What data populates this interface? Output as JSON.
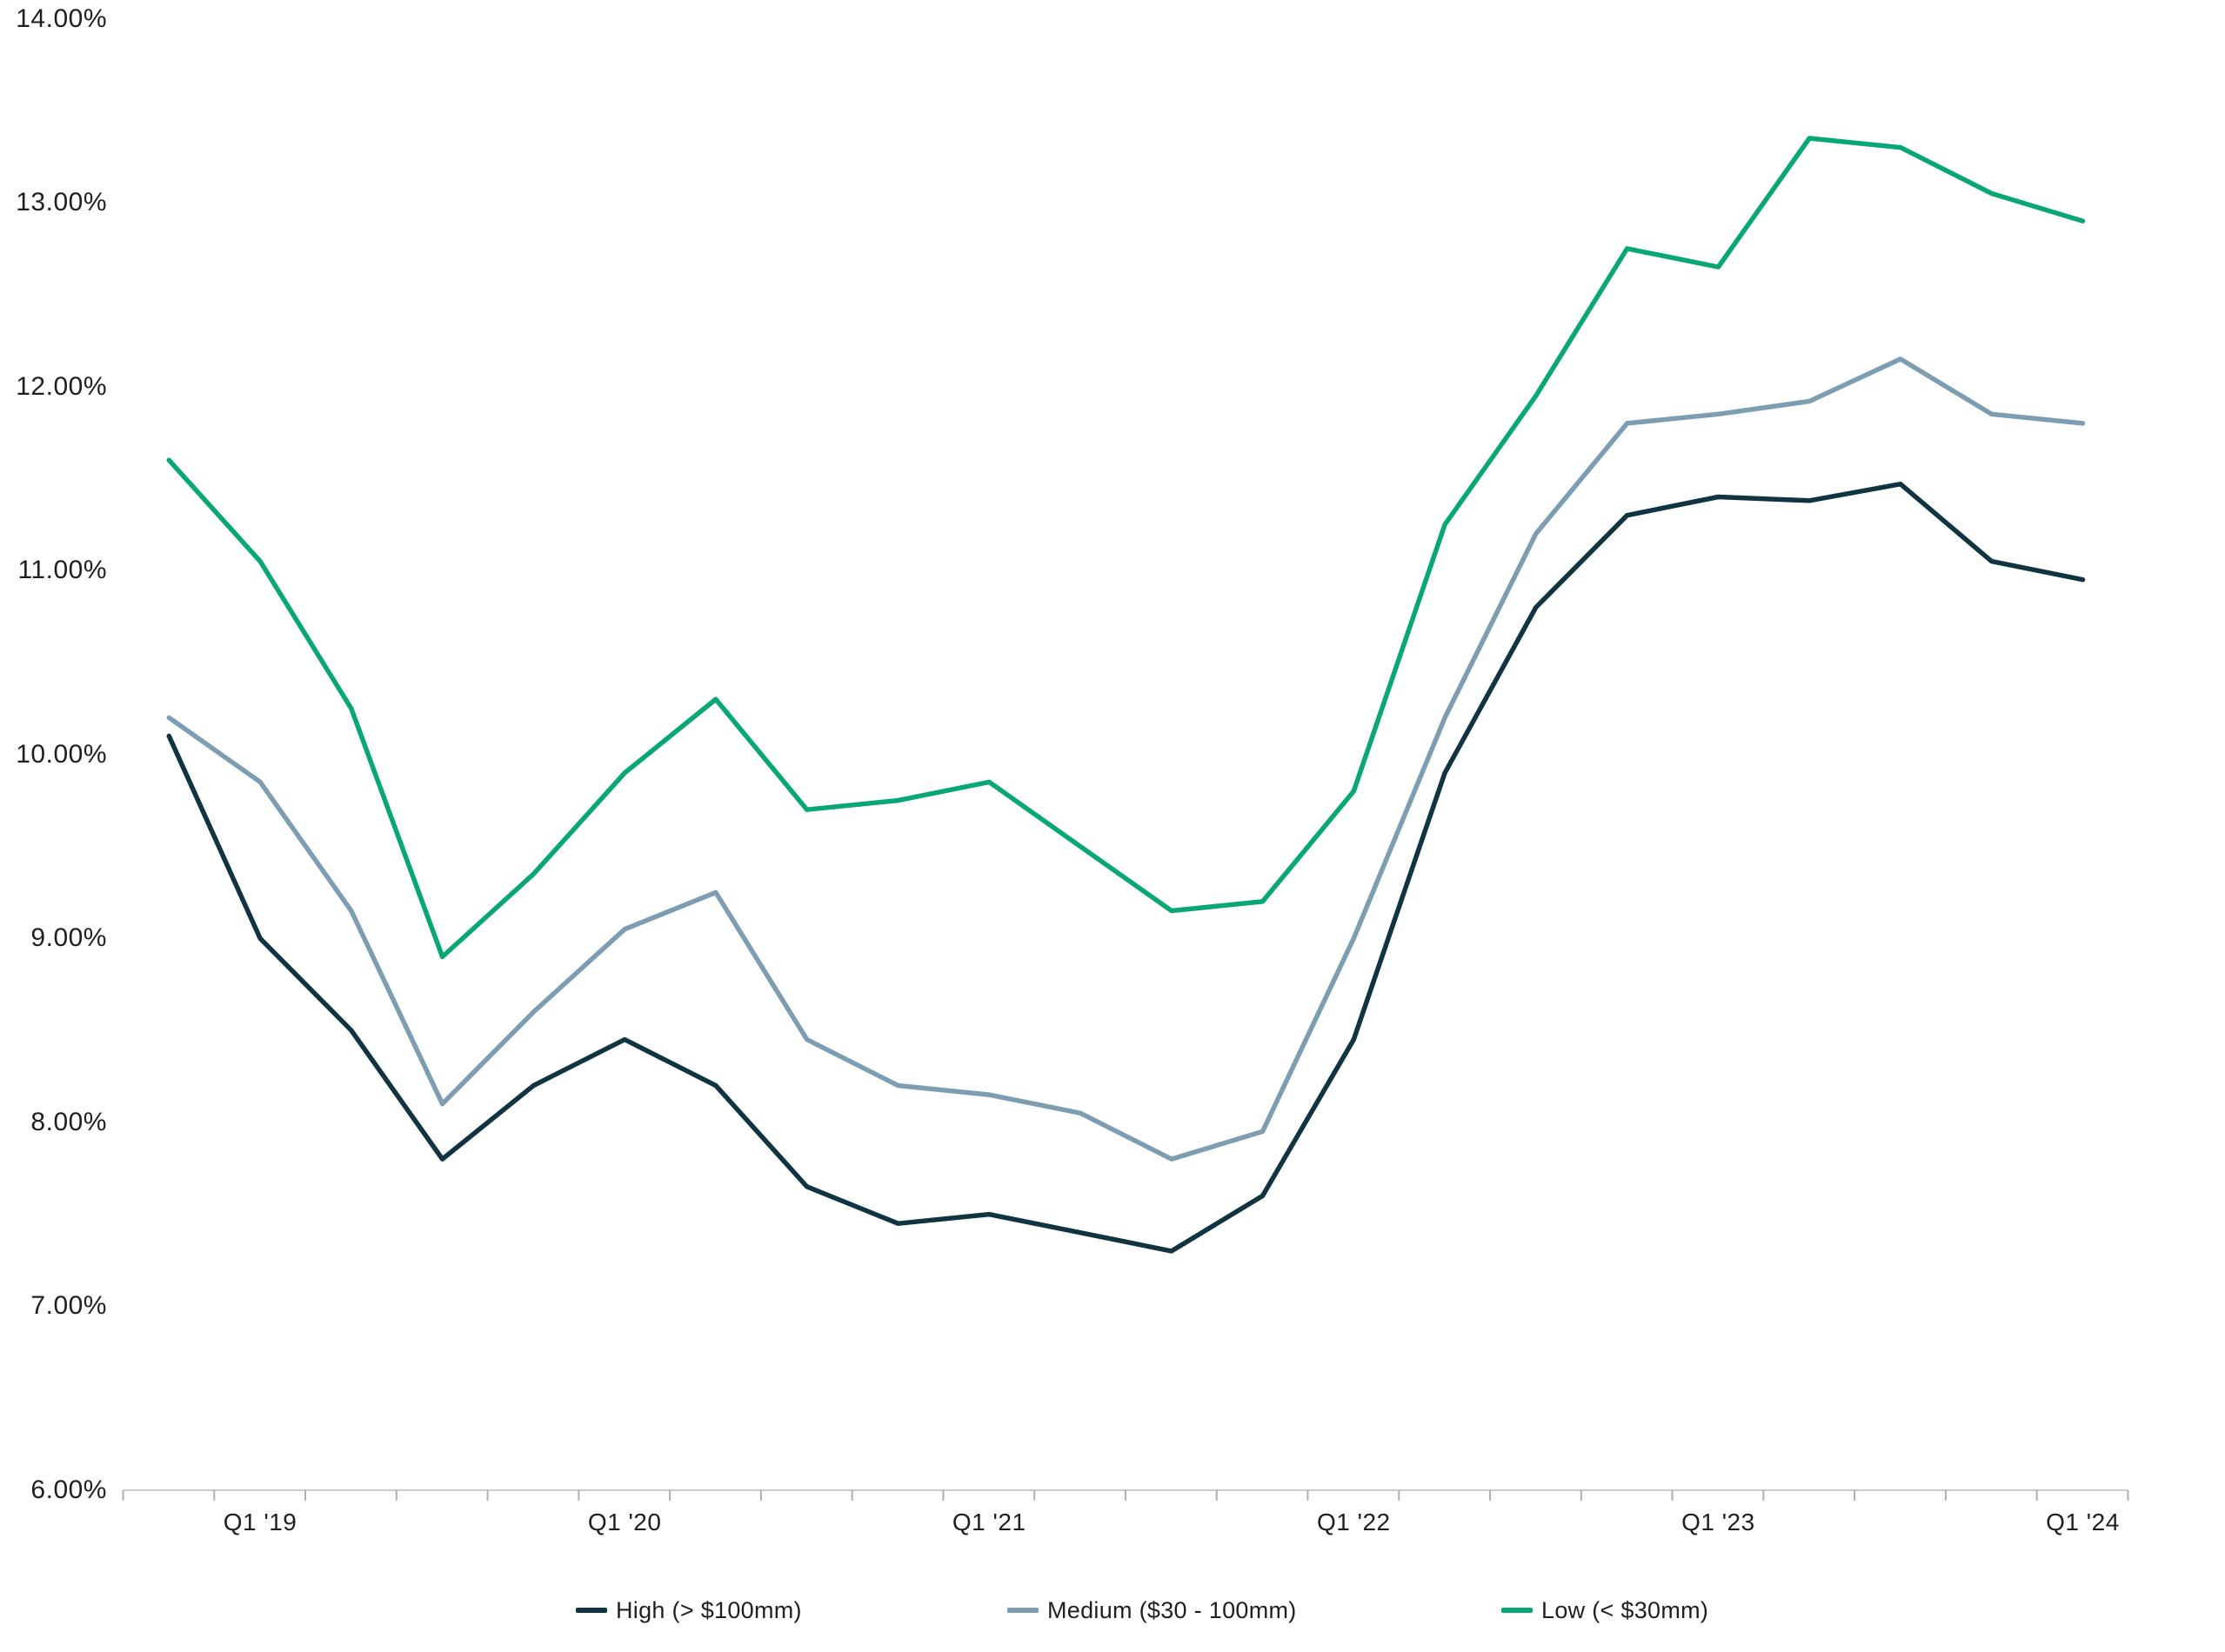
{
  "page": {
    "background": "#ffffff"
  },
  "chart_data": {
    "type": "line",
    "title": "",
    "xlabel": "",
    "ylabel": "",
    "grid": false,
    "categories": [
      "Q4 '18",
      "Q1 '19",
      "Q2 '19",
      "Q3 '19",
      "Q4 '19",
      "Q1 '20",
      "Q2 '20",
      "Q3 '20",
      "Q4 '20",
      "Q1 '21",
      "Q2 '21",
      "Q3 '21",
      "Q4 '21",
      "Q1 '22",
      "Q2 '22",
      "Q3 '22",
      "Q4 '22",
      "Q1 '23",
      "Q2 '23",
      "Q3 '23",
      "Q4 '23",
      "Q1 '24"
    ],
    "series": [
      {
        "name": "High (> $100mm)",
        "color": "#103442",
        "values": [
          10.1,
          9.0,
          8.5,
          7.8,
          8.2,
          8.45,
          8.2,
          7.65,
          7.45,
          7.5,
          7.4,
          7.3,
          7.6,
          8.45,
          9.9,
          10.8,
          11.3,
          11.4,
          11.38,
          11.47,
          11.05,
          10.95
        ]
      },
      {
        "name": "Medium ($30 - 100mm)",
        "color": "#7D9DB2",
        "values": [
          10.2,
          9.85,
          9.15,
          8.1,
          8.6,
          9.05,
          9.25,
          8.45,
          8.2,
          8.15,
          8.05,
          7.8,
          7.95,
          9.0,
          10.2,
          11.2,
          11.8,
          11.85,
          11.92,
          12.15,
          11.85,
          11.8
        ]
      },
      {
        "name": "Low (< $30mm)",
        "color": "#09A776",
        "values": [
          11.6,
          11.05,
          10.25,
          8.9,
          9.35,
          9.9,
          10.3,
          9.7,
          9.75,
          9.85,
          9.5,
          9.15,
          9.2,
          9.8,
          11.25,
          11.95,
          12.75,
          12.65,
          13.35,
          13.3,
          13.05,
          12.9
        ]
      }
    ],
    "y_axis": {
      "min": 6,
      "max": 14,
      "step": 1,
      "tick_labels": [
        "14.00%",
        "13.00%",
        "12.00%",
        "11.00%",
        "10.00%",
        "9.00%",
        "8.00%",
        "7.00%",
        "6.00%"
      ]
    },
    "x_axis": {
      "visible_tick_labels": [
        "Q1 '19",
        "Q1 '20",
        "Q1 '21",
        "Q1 '22",
        "Q1 '23",
        "Q1 '24"
      ],
      "visible_tick_indices": [
        1,
        5,
        9,
        13,
        17,
        21
      ]
    },
    "legend": {
      "position": "bottom",
      "items": [
        {
          "label": "High (> $100mm)",
          "color": "#103442"
        },
        {
          "label": "Medium ($30 - 100mm)",
          "color": "#7D9DB2"
        },
        {
          "label": "Low (< $30mm)",
          "color": "#09A776"
        }
      ]
    }
  },
  "colors": {
    "axis_line": "#C9C9C9",
    "tick_mark": "#B0B0B0",
    "label_text": "#1F1F1F"
  }
}
